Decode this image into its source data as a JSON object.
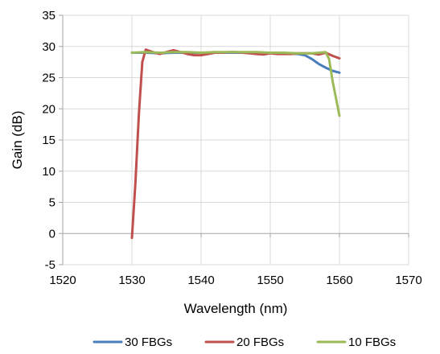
{
  "chart_data": {
    "type": "line",
    "title": "",
    "xlabel": "Wavelength (nm)",
    "ylabel": "Gain (dB)",
    "xlim": [
      1520,
      1570
    ],
    "ylim": [
      -5,
      35
    ],
    "xticks": [
      1520,
      1530,
      1540,
      1550,
      1560,
      1570
    ],
    "yticks": [
      -5,
      0,
      5,
      10,
      15,
      20,
      25,
      30,
      35
    ],
    "xtick_labels": [
      "1520",
      "1530",
      "1540",
      "1550",
      "1560",
      "1570"
    ],
    "ytick_labels": [
      "-5",
      "0",
      "5",
      "10",
      "15",
      "20",
      "25",
      "30",
      "35"
    ],
    "grid": "horizontal",
    "legend": "bottom",
    "series": [
      {
        "name": "30 FBGs",
        "color": "#4A7EBB",
        "x": [
          1530,
          1532,
          1534,
          1536,
          1538,
          1540,
          1542,
          1544,
          1546,
          1548,
          1550,
          1552,
          1554,
          1555,
          1556,
          1557,
          1558,
          1559,
          1560
        ],
        "y": [
          29.0,
          29.0,
          28.9,
          29.0,
          29.0,
          29.0,
          29.0,
          29.0,
          29.0,
          28.9,
          29.0,
          28.9,
          28.8,
          28.6,
          28.0,
          27.2,
          26.6,
          26.1,
          25.8
        ]
      },
      {
        "name": "20 FBGs",
        "color": "#C0504D",
        "x": [
          1530,
          1530.5,
          1531,
          1531.5,
          1532,
          1533,
          1534,
          1535,
          1536,
          1537,
          1538,
          1539,
          1540,
          1541,
          1542,
          1543,
          1544,
          1545,
          1546,
          1547,
          1548,
          1549,
          1550,
          1551,
          1552,
          1553,
          1554,
          1555,
          1556,
          1557,
          1558,
          1559,
          1560
        ],
        "y": [
          -0.7,
          8.0,
          19.0,
          27.5,
          29.5,
          29.1,
          28.8,
          29.1,
          29.4,
          29.1,
          28.8,
          28.6,
          28.6,
          28.8,
          29.0,
          29.0,
          29.1,
          29.1,
          29.0,
          28.9,
          28.8,
          28.7,
          28.9,
          28.8,
          28.8,
          28.8,
          28.9,
          28.9,
          28.9,
          28.7,
          29.0,
          28.5,
          28.1
        ]
      },
      {
        "name": "10 FBGs",
        "color": "#9BBB59",
        "x": [
          1530,
          1532,
          1534,
          1536,
          1538,
          1540,
          1542,
          1544,
          1546,
          1548,
          1550,
          1552,
          1554,
          1556,
          1557,
          1558,
          1558.5,
          1559,
          1560
        ],
        "y": [
          29.0,
          29.1,
          29.0,
          29.1,
          29.1,
          29.0,
          29.1,
          29.1,
          29.1,
          29.1,
          29.0,
          29.0,
          28.9,
          28.9,
          29.0,
          29.1,
          28.0,
          24.5,
          18.9
        ]
      }
    ]
  }
}
